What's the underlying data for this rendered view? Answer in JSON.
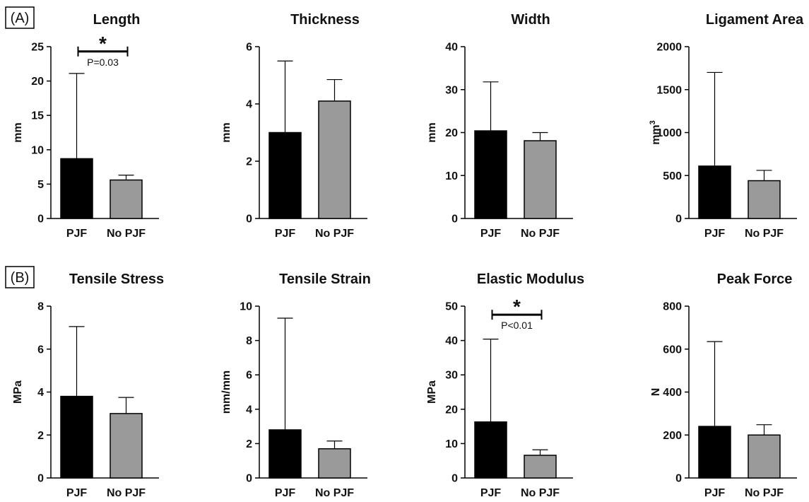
{
  "panel_labels": [
    "(A)",
    "(B)"
  ],
  "chart_data": [
    {
      "type": "bar",
      "title": "Length",
      "ylabel": "mm",
      "ylim": [
        0,
        25
      ],
      "yticks": [
        0,
        5,
        10,
        15,
        20,
        25
      ],
      "categories": [
        "PJF",
        "No PJF"
      ],
      "values": [
        8.7,
        5.6
      ],
      "error_upper": [
        21.1,
        6.3
      ],
      "colors": [
        "#000000",
        "#9a9a9a"
      ],
      "significance": {
        "marker": "*",
        "label": "P=0.03",
        "y": 24.3
      }
    },
    {
      "type": "bar",
      "title": "Thickness",
      "ylabel": "mm",
      "ylim": [
        0,
        6
      ],
      "yticks": [
        0,
        2,
        4,
        6
      ],
      "categories": [
        "PJF",
        "No PJF"
      ],
      "values": [
        3.0,
        4.1
      ],
      "error_upper": [
        5.5,
        4.85
      ],
      "colors": [
        "#000000",
        "#9a9a9a"
      ]
    },
    {
      "type": "bar",
      "title": "Width",
      "ylabel": "mm",
      "ylim": [
        0,
        40
      ],
      "yticks": [
        0,
        10,
        20,
        30,
        40
      ],
      "categories": [
        "PJF",
        "No PJF"
      ],
      "values": [
        20.4,
        18.1
      ],
      "error_upper": [
        31.8,
        20.0
      ],
      "colors": [
        "#000000",
        "#9a9a9a"
      ]
    },
    {
      "type": "bar",
      "title": "Ligament Area",
      "ylabel": "mm",
      "ylabel_sup": "3",
      "ylim": [
        0,
        2000
      ],
      "yticks": [
        0,
        500,
        1000,
        1500,
        2000
      ],
      "categories": [
        "PJF",
        "No PJF"
      ],
      "values": [
        610,
        440
      ],
      "error_upper": [
        1700,
        560
      ],
      "colors": [
        "#000000",
        "#9a9a9a"
      ]
    },
    {
      "type": "bar",
      "title": "Tensile Stress",
      "ylabel": "MPa",
      "ylim": [
        0,
        8
      ],
      "yticks": [
        0,
        2,
        4,
        6,
        8
      ],
      "categories": [
        "PJF",
        "No PJF"
      ],
      "values": [
        3.8,
        3.0
      ],
      "error_upper": [
        7.05,
        3.75
      ],
      "colors": [
        "#000000",
        "#9a9a9a"
      ]
    },
    {
      "type": "bar",
      "title": "Tensile Strain",
      "ylabel": "mm/mm",
      "ylim": [
        0,
        10
      ],
      "yticks": [
        0,
        2,
        4,
        6,
        8,
        10
      ],
      "categories": [
        "PJF",
        "No PJF"
      ],
      "values": [
        2.8,
        1.7
      ],
      "error_upper": [
        9.3,
        2.15
      ],
      "colors": [
        "#000000",
        "#9a9a9a"
      ]
    },
    {
      "type": "bar",
      "title": "Elastic Modulus",
      "ylabel": "MPa",
      "ylim": [
        0,
        50
      ],
      "yticks": [
        0,
        10,
        20,
        30,
        40,
        50
      ],
      "categories": [
        "PJF",
        "No PJF"
      ],
      "values": [
        16.3,
        6.6
      ],
      "error_upper": [
        40.4,
        8.2
      ],
      "colors": [
        "#000000",
        "#9a9a9a"
      ],
      "significance": {
        "marker": "*",
        "label": "P<0.01",
        "y": 47.5
      }
    },
    {
      "type": "bar",
      "title": "Peak Force",
      "ylabel": "N",
      "ylim": [
        0,
        800
      ],
      "yticks": [
        0,
        200,
        400,
        600,
        800
      ],
      "categories": [
        "PJF",
        "No PJF"
      ],
      "values": [
        240,
        200
      ],
      "error_upper": [
        635,
        248
      ],
      "colors": [
        "#000000",
        "#9a9a9a"
      ]
    }
  ]
}
